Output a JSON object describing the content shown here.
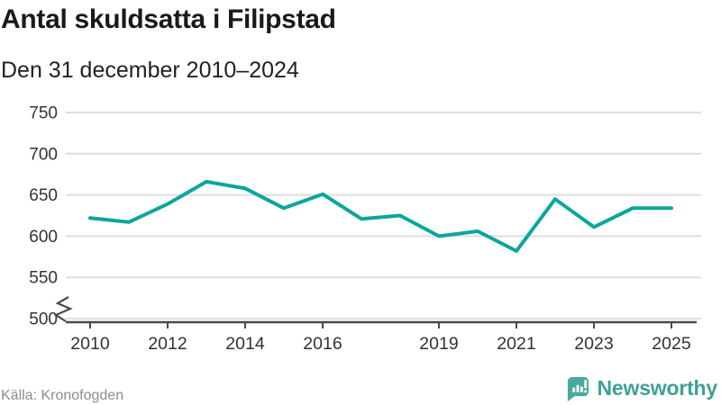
{
  "header": {
    "title": "Antal skuldsatta i Filipstad",
    "subtitle": "Den 31 december 2010–2024"
  },
  "footer": {
    "source": "Källa: Kronofogden",
    "logo_text": "Newsworthy"
  },
  "colors": {
    "line": "#0CA69B",
    "grid": "#DEDEDE",
    "axis": "#4A4A4A",
    "tick_label": "#333333",
    "logo_teal": "#4BA89E",
    "logo_text": "#3FA096"
  },
  "chart_data": {
    "type": "line",
    "title": "Antal skuldsatta i Filipstad",
    "subtitle": "Den 31 december 2010–2024",
    "series_name": "Antal skuldsatta",
    "x": [
      2010,
      2011,
      2012,
      2013,
      2014,
      2015,
      2016,
      2017,
      2018,
      2019,
      2020,
      2021,
      2022,
      2023,
      2024
    ],
    "values": [
      622,
      617,
      639,
      666,
      658,
      634,
      651,
      621,
      625,
      600,
      606,
      582,
      645,
      611,
      634
    ],
    "line_extends_flat_to": 2025,
    "x_ticks": [
      2010,
      2012,
      2014,
      2016,
      2019,
      2021,
      2023,
      2025
    ],
    "y_ticks": [
      500,
      550,
      600,
      650,
      700,
      750
    ],
    "ylim": [
      500,
      750
    ],
    "y_axis_break_at_500": true,
    "grid": "horizontal",
    "legend": "none",
    "xlabel": "",
    "ylabel": "",
    "line_color": "#0CA69B"
  }
}
